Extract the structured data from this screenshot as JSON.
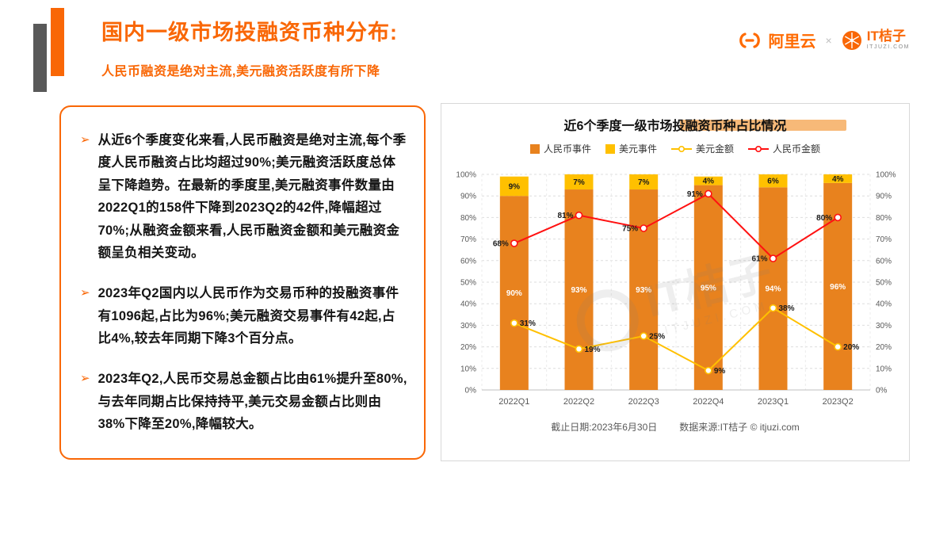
{
  "header": {
    "title": "国内一级市场投融资币种分布:",
    "subtitle": "人民币融资是绝对主流,美元融资活跃度有所下降",
    "alicloud_label": "阿里云",
    "logo_separator": "×",
    "itjuzi_label": "IT桔子",
    "itjuzi_sub": "ITJUZI.COM"
  },
  "bullet_marker": "➢",
  "bullets": [
    "从近6个季度变化来看,人民币融资是绝对主流,每个季度人民币融资占比均超过90%;美元融资活跃度总体呈下降趋势。在最新的季度里,美元融资事件数量由2022Q1的158件下降到2023Q2的42件,降幅超过70%;从融资金额来看,人民币融资金额和美元融资金额呈负相关变动。",
    "2023年Q2国内以人民币作为交易币种的投融资事件有1096起,占比为96%;美元融资交易事件有42起,占比4%,较去年同期下降3个百分点。",
    "2023年Q2,人民币交易总金额占比由61%提升至80%,与去年同期占比保持持平,美元交易金额占比则由38%下降至20%,降幅较大。"
  ],
  "chart": {
    "title": "近6个季度一级市场投融资币种占比情况",
    "footer_date": "截止日期:2023年6月30日",
    "footer_source": "数据来源:IT桔子 © itjuzi.com",
    "watermark_line1": "IT桔子",
    "watermark_line2": "ITJUZI.COM"
  },
  "colors": {
    "accent_orange": "#F96706",
    "bar_orange": "#E8821E",
    "bar_yellow": "#FFC000",
    "line_yellow": "#FFC000",
    "line_red": "#FF1111",
    "deco_gray": "#595959"
  },
  "chart_data": {
    "type": "bar",
    "variant": "stacked-columns-with-lines",
    "title": "近6个季度一级市场投融资币种占比情况",
    "categories": [
      "2022Q1",
      "2022Q2",
      "2022Q3",
      "2022Q4",
      "2023Q1",
      "2023Q2"
    ],
    "series": [
      {
        "name": "人民币事件",
        "type": "bar",
        "color": "#E8821E",
        "values": [
          90,
          93,
          93,
          95,
          94,
          96
        ]
      },
      {
        "name": "美元事件",
        "type": "bar",
        "color": "#FFC000",
        "values": [
          9,
          7,
          7,
          4,
          6,
          4
        ]
      },
      {
        "name": "美元金额",
        "type": "line",
        "color": "#FFC000",
        "values": [
          31,
          19,
          25,
          9,
          38,
          20
        ]
      },
      {
        "name": "人民币金额",
        "type": "line",
        "color": "#FF1111",
        "values": [
          68,
          81,
          75,
          91,
          61,
          80
        ]
      }
    ],
    "ylim": [
      0,
      100
    ],
    "y_tick_step": 10,
    "y_tick_labels": [
      "0%",
      "10%",
      "20%",
      "30%",
      "40%",
      "50%",
      "60%",
      "70%",
      "80%",
      "90%",
      "100%"
    ],
    "grid": true,
    "legend_position": "top",
    "value_suffix": "%"
  }
}
